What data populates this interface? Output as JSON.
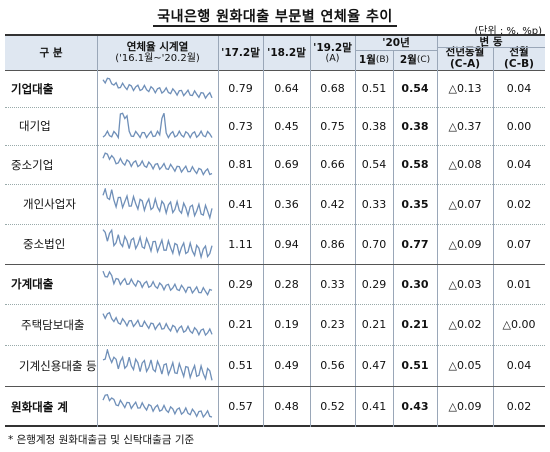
{
  "title": "국내은행 원화대출 부문별 연체율 추이",
  "unit": "(단위 : %, %p)",
  "headers": {
    "category": "구 분",
    "series_line1": "연체율 시계열",
    "series_line2": "('16.1월~'20.2월)",
    "y17": "'17.2말",
    "y18": "'18.2말",
    "y19_line1": "'19.2말",
    "y19_line2": "(A)",
    "y20_group": "'20년",
    "jan_line1": "1월",
    "jan_line2": "(B)",
    "feb_line1": "2월",
    "feb_line2": "(C)",
    "change_group": "변 동",
    "yoy_line1": "전년동월",
    "yoy_line2": "(C-A)",
    "mom_line1": "전월",
    "mom_line2": "(C-B)"
  },
  "rows": [
    {
      "label": "기업대출",
      "y17": "0.79",
      "y18": "0.64",
      "y19": "0.68",
      "jan": "0.51",
      "feb": "0.54",
      "yoy": "△0.13",
      "mom": "0.04"
    },
    {
      "label": "대기업",
      "y17": "0.73",
      "y18": "0.45",
      "y19": "0.75",
      "jan": "0.38",
      "feb": "0.38",
      "yoy": "△0.37",
      "mom": "0.00"
    },
    {
      "label": "중소기업",
      "y17": "0.81",
      "y18": "0.69",
      "y19": "0.66",
      "jan": "0.54",
      "feb": "0.58",
      "yoy": "△0.08",
      "mom": "0.04"
    },
    {
      "label": "개인사업자",
      "y17": "0.41",
      "y18": "0.36",
      "y19": "0.42",
      "jan": "0.33",
      "feb": "0.35",
      "yoy": "△0.07",
      "mom": "0.02"
    },
    {
      "label": "중소법인",
      "y17": "1.11",
      "y18": "0.94",
      "y19": "0.86",
      "jan": "0.70",
      "feb": "0.77",
      "yoy": "△0.09",
      "mom": "0.07"
    },
    {
      "label": "가계대출",
      "y17": "0.29",
      "y18": "0.28",
      "y19": "0.33",
      "jan": "0.29",
      "feb": "0.30",
      "yoy": "△0.03",
      "mom": "0.01"
    },
    {
      "label": "주택담보대출",
      "y17": "0.21",
      "y18": "0.19",
      "y19": "0.23",
      "jan": "0.21",
      "feb": "0.21",
      "yoy": "△0.02",
      "mom": "△0.00"
    },
    {
      "label": "기계신용대출 등",
      "y17": "0.51",
      "y18": "0.49",
      "y19": "0.56",
      "jan": "0.47",
      "feb": "0.51",
      "yoy": "△0.05",
      "mom": "0.04"
    },
    {
      "label": "원화대출 계",
      "y17": "0.57",
      "y18": "0.48",
      "y19": "0.52",
      "jan": "0.41",
      "feb": "0.43",
      "yoy": "△0.09",
      "mom": "0.02"
    }
  ],
  "footnote": "* 은행계정 원화대출금 및 신탁대출금 기준",
  "colors": {
    "header_bg": "#dfe7f1",
    "sparkline": "#6f8fb8"
  }
}
